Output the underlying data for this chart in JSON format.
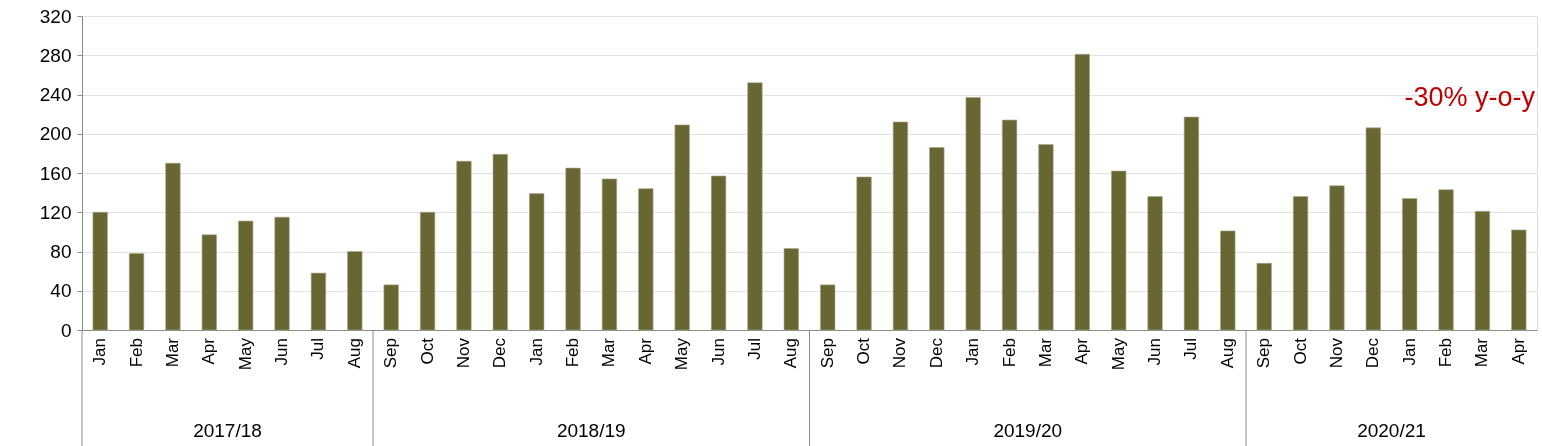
{
  "chart_data": {
    "type": "bar",
    "categories": [
      "Jan",
      "Feb",
      "Mar",
      "Apr",
      "May",
      "Jun",
      "Jul",
      "Aug",
      "Sep",
      "Oct",
      "Nov",
      "Dec",
      "Jan",
      "Feb",
      "Mar",
      "Apr",
      "May",
      "Jun",
      "Jul",
      "Aug",
      "Sep",
      "Oct",
      "Nov",
      "Dec",
      "Jan",
      "Feb",
      "Mar",
      "Apr",
      "May",
      "Jun",
      "Jul",
      "Aug",
      "Sep",
      "Oct",
      "Nov",
      "Dec",
      "Jan",
      "Feb",
      "Mar",
      "Apr"
    ],
    "values": [
      120,
      78,
      170,
      97,
      111,
      115,
      58,
      80,
      46,
      120,
      172,
      179,
      139,
      165,
      154,
      144,
      209,
      157,
      252,
      83,
      46,
      156,
      212,
      186,
      237,
      214,
      189,
      281,
      162,
      136,
      217,
      101,
      68,
      136,
      147,
      206,
      134,
      143,
      121,
      102
    ],
    "color": "#686734",
    "ylim": [
      0,
      320
    ],
    "yticks": [
      0,
      40,
      80,
      120,
      160,
      200,
      240,
      280,
      320
    ],
    "grid": "y",
    "annotations": [
      "2017/18",
      "2018/19",
      "2019/20",
      "2020/21",
      "-30% y-o-y"
    ]
  }
}
